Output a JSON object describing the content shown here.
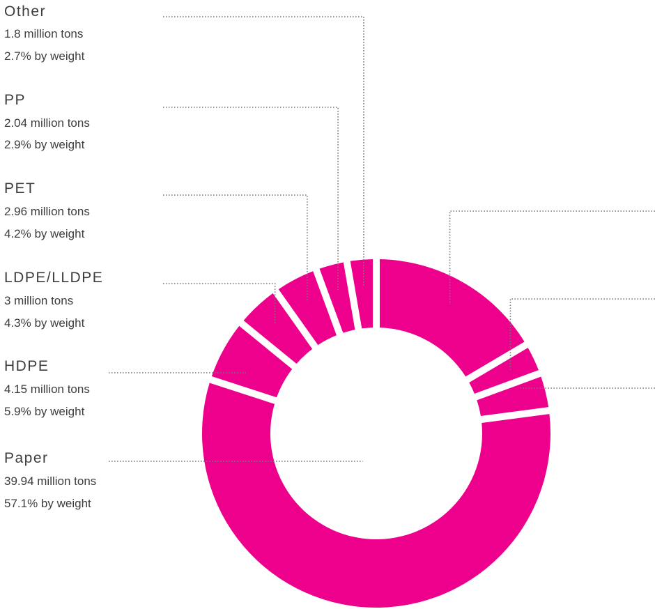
{
  "chart_data": {
    "type": "pie",
    "variant": "donut",
    "color": "#ec008c",
    "slices": [
      {
        "name": "Other",
        "tons": "1.8 million tons",
        "share": "2.7% by weight",
        "value": 2.7,
        "labeled": true
      },
      {
        "name": "PP",
        "tons": "2.04 million tons",
        "share": "2.9% by weight",
        "value": 2.9,
        "labeled": true
      },
      {
        "name": "PET",
        "tons": "2.96 million tons",
        "share": "4.2% by weight",
        "value": 4.2,
        "labeled": true
      },
      {
        "name": "LDPE/LLDPE",
        "tons": "3 million tons",
        "share": "4.3% by weight",
        "value": 4.3,
        "labeled": true
      },
      {
        "name": "HDPE",
        "tons": "4.15 million tons",
        "share": "5.9% by weight",
        "value": 5.9,
        "labeled": true
      },
      {
        "name": "Paper",
        "tons": "39.94 million tons",
        "share": "57.1% by weight",
        "value": 57.1,
        "labeled": true
      },
      {
        "name": "",
        "tons": "",
        "share": "",
        "value": 3.5,
        "labeled": false
      },
      {
        "name": "",
        "tons": "",
        "share": "",
        "value": 2.9,
        "labeled": false
      },
      {
        "name": "",
        "tons": "",
        "share": "",
        "value": 16.5,
        "labeled": false
      }
    ]
  }
}
